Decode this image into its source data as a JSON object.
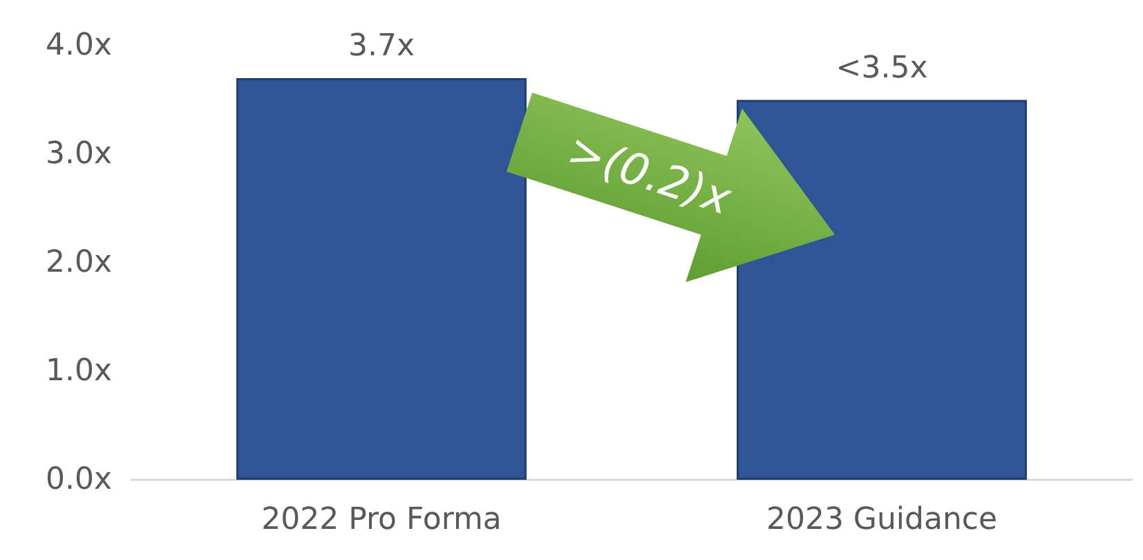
{
  "chart_data": {
    "type": "bar",
    "categories": [
      "2022 Pro Forma",
      "2023 Guidance"
    ],
    "values": [
      3.7,
      3.5
    ],
    "color": "#2f5597",
    "value_labels": [
      "3.7x",
      "<3.5x"
    ],
    "ylim": [
      0,
      4
    ],
    "yticks": [
      {
        "value": 0,
        "label": "0.0x"
      },
      {
        "value": 1,
        "label": "1.0x"
      },
      {
        "value": 2,
        "label": "2.0x"
      },
      {
        "value": 3,
        "label": "3.0x"
      },
      {
        "value": 4,
        "label": "4.0x"
      }
    ],
    "grid": false,
    "annotations": [
      ">(0.2)x"
    ]
  }
}
